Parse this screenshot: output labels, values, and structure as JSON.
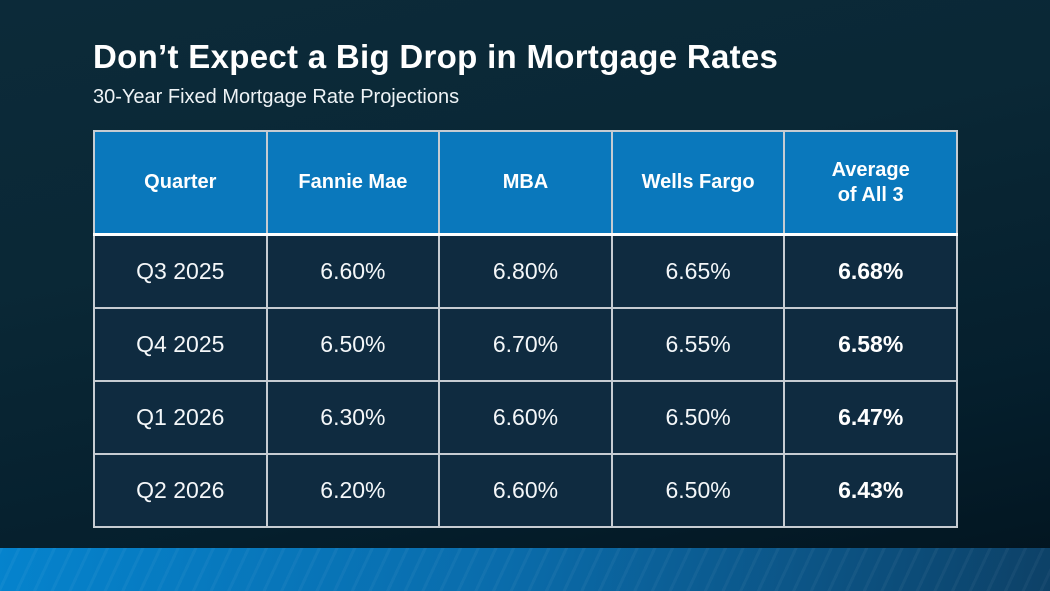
{
  "slide": {
    "title": "Don’t Expect a Big Drop in Mortgage Rates",
    "subtitle": "30-Year Fixed Mortgage Rate Projections"
  },
  "table": {
    "columns": [
      "Quarter",
      "Fannie Mae",
      "MBA",
      "Wells Fargo",
      "Average\nof All 3"
    ],
    "rows": [
      [
        "Q3 2025",
        "6.60%",
        "6.80%",
        "6.65%",
        "6.68%"
      ],
      [
        "Q4 2025",
        "6.50%",
        "6.70%",
        "6.55%",
        "6.58%"
      ],
      [
        "Q1 2026",
        "6.30%",
        "6.60%",
        "6.50%",
        "6.47%"
      ],
      [
        "Q2 2026",
        "6.20%",
        "6.60%",
        "6.50%",
        "6.43%"
      ]
    ]
  },
  "chart_data": {
    "type": "table",
    "title": "Don’t Expect a Big Drop in Mortgage Rates",
    "subtitle": "30-Year Fixed Mortgage Rate Projections",
    "categories": [
      "Q3 2025",
      "Q4 2025",
      "Q1 2026",
      "Q2 2026"
    ],
    "series": [
      {
        "name": "Fannie Mae",
        "values": [
          6.6,
          6.5,
          6.3,
          6.2
        ]
      },
      {
        "name": "MBA",
        "values": [
          6.8,
          6.7,
          6.6,
          6.6
        ]
      },
      {
        "name": "Wells Fargo",
        "values": [
          6.65,
          6.55,
          6.5,
          6.5
        ]
      },
      {
        "name": "Average of All 3",
        "values": [
          6.68,
          6.58,
          6.47,
          6.43
        ]
      }
    ],
    "unit": "%"
  },
  "colors": {
    "background_top": "#0c2a39",
    "background_bottom": "#02141f",
    "header_blue": "#0a78bc",
    "cell_navy": "#0f2b40",
    "grid_line": "#c6ccd2",
    "header_underline": "#ffffff",
    "strip_left": "#0583cd",
    "strip_right": "#0d4167",
    "text": "#ffffff"
  }
}
